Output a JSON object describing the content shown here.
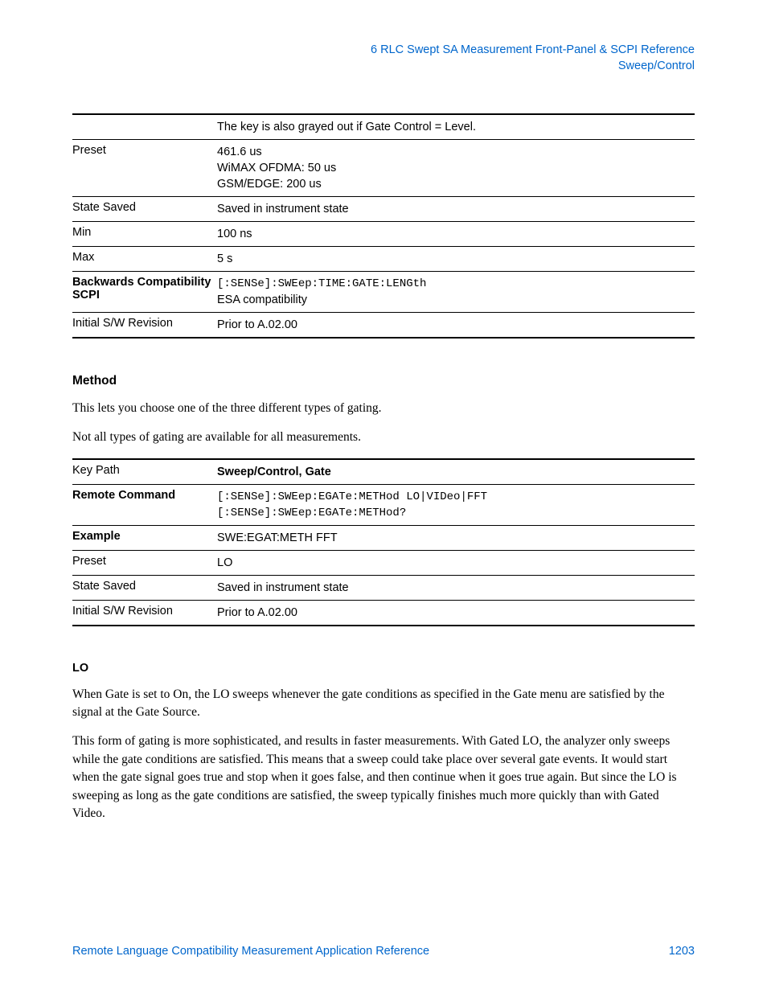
{
  "header": {
    "line1": "6  RLC Swept SA Measurement Front-Panel & SCPI Reference",
    "line2": "Sweep/Control"
  },
  "table1": {
    "rows": [
      {
        "label": "",
        "label_bold": false,
        "value_lines": [
          "The key is also grayed out if Gate Control = Level."
        ],
        "mono": [
          false
        ],
        "thick_top": true
      },
      {
        "label": "Preset",
        "label_bold": false,
        "value_lines": [
          "461.6 us",
          "WiMAX OFDMA: 50 us",
          "GSM/EDGE: 200 us"
        ],
        "mono": [
          false,
          false,
          false
        ]
      },
      {
        "label": "State Saved",
        "label_bold": false,
        "value_lines": [
          "Saved in instrument state"
        ],
        "mono": [
          false
        ]
      },
      {
        "label": "Min",
        "label_bold": false,
        "value_lines": [
          "100 ns"
        ],
        "mono": [
          false
        ]
      },
      {
        "label": "Max",
        "label_bold": false,
        "value_lines": [
          "5 s"
        ],
        "mono": [
          false
        ]
      },
      {
        "label": "Backwards Compatibility SCPI",
        "label_bold": true,
        "value_lines": [
          "[:SENSe]:SWEep:TIME:GATE:LENGth",
          "ESA compatibility"
        ],
        "mono": [
          true,
          false
        ]
      },
      {
        "label": "Initial S/W Revision",
        "label_bold": false,
        "value_lines": [
          "Prior to A.02.00"
        ],
        "mono": [
          false
        ],
        "thick_bottom": true
      }
    ]
  },
  "section1": {
    "heading": "Method",
    "p1": "This lets you choose one of the three different types of gating.",
    "p2": "Not all types of gating are available for all measurements."
  },
  "table2": {
    "rows": [
      {
        "label": "Key Path",
        "label_bold": false,
        "value_lines": [
          "Sweep/Control, Gate"
        ],
        "mono": [
          false
        ],
        "value_bold": [
          true
        ],
        "thick_top": true
      },
      {
        "label": "Remote Command",
        "label_bold": true,
        "value_lines": [
          "[:SENSe]:SWEep:EGATe:METHod LO|VIDeo|FFT",
          "[:SENSe]:SWEep:EGATe:METHod?"
        ],
        "mono": [
          true,
          true
        ]
      },
      {
        "label": "Example",
        "label_bold": true,
        "value_lines": [
          "SWE:EGAT:METH FFT"
        ],
        "mono": [
          false
        ]
      },
      {
        "label": "Preset",
        "label_bold": false,
        "value_lines": [
          "LO"
        ],
        "mono": [
          false
        ]
      },
      {
        "label": "State Saved",
        "label_bold": false,
        "value_lines": [
          "Saved in instrument state"
        ],
        "mono": [
          false
        ]
      },
      {
        "label": "Initial S/W Revision",
        "label_bold": false,
        "value_lines": [
          "Prior to A.02.00"
        ],
        "mono": [
          false
        ],
        "thick_bottom": true
      }
    ]
  },
  "section2": {
    "heading": "LO",
    "p1": "When Gate is set to On, the LO sweeps whenever the gate conditions as specified in the Gate menu are satisfied by the signal at the Gate Source.",
    "p2": "This form of gating is more sophisticated, and results in faster measurements. With Gated LO, the analyzer only sweeps while the gate conditions are satisfied. This means that a sweep could take place over several gate events. It would start when the gate signal goes true and stop when it goes false, and then continue when it goes true again. But since the LO is sweeping as long as the gate conditions are satisfied, the sweep typically finishes much more quickly than with Gated Video."
  },
  "footer": {
    "title": "Remote Language Compatibility Measurement Application Reference",
    "page": "1203"
  }
}
